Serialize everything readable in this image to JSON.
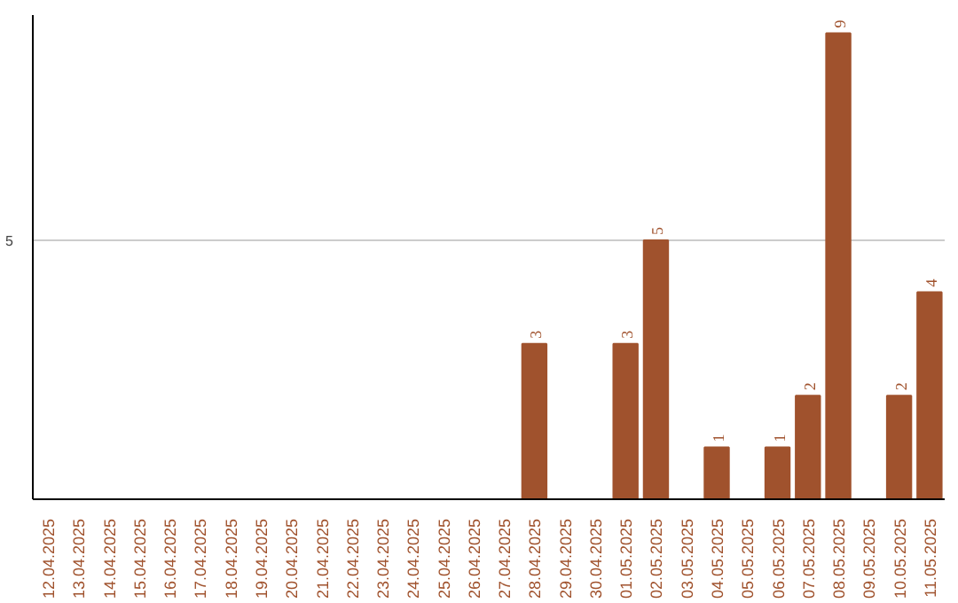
{
  "chart_data": {
    "type": "bar",
    "categories": [
      "12.04.2025",
      "13.04.2025",
      "14.04.2025",
      "15.04.2025",
      "16.04.2025",
      "17.04.2025",
      "18.04.2025",
      "19.04.2025",
      "20.04.2025",
      "21.04.2025",
      "22.04.2025",
      "23.04.2025",
      "24.04.2025",
      "25.04.2025",
      "26.04.2025",
      "27.04.2025",
      "28.04.2025",
      "29.04.2025",
      "30.04.2025",
      "01.05.2025",
      "02.05.2025",
      "03.05.2025",
      "04.05.2025",
      "05.05.2025",
      "06.05.2025",
      "07.05.2025",
      "08.05.2025",
      "09.05.2025",
      "10.05.2025",
      "11.05.2025"
    ],
    "values": [
      null,
      null,
      null,
      null,
      null,
      null,
      null,
      null,
      null,
      null,
      null,
      null,
      null,
      null,
      null,
      null,
      3,
      null,
      null,
      3,
      5,
      null,
      1,
      null,
      1,
      2,
      9,
      null,
      2,
      4
    ],
    "data_labels": true,
    "color": "#a0522d",
    "ylim": [
      0,
      9.35
    ],
    "yticks": [
      5
    ],
    "grid": "y"
  }
}
